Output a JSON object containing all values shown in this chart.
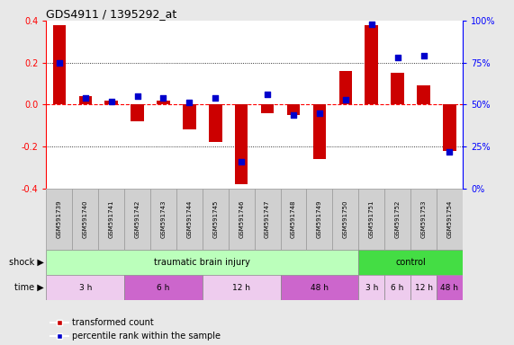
{
  "title": "GDS4911 / 1395292_at",
  "samples": [
    "GSM591739",
    "GSM591740",
    "GSM591741",
    "GSM591742",
    "GSM591743",
    "GSM591744",
    "GSM591745",
    "GSM591746",
    "GSM591747",
    "GSM591748",
    "GSM591749",
    "GSM591750",
    "GSM591751",
    "GSM591752",
    "GSM591753",
    "GSM591754"
  ],
  "red_values": [
    0.38,
    0.04,
    0.02,
    -0.08,
    0.02,
    -0.12,
    -0.18,
    -0.38,
    -0.04,
    -0.05,
    -0.26,
    0.16,
    0.38,
    0.15,
    0.09,
    -0.22
  ],
  "blue_percentile": [
    75,
    54,
    52,
    55,
    54,
    51,
    54,
    16,
    56,
    44,
    45,
    53,
    98,
    78,
    79,
    22
  ],
  "shock_groups": [
    {
      "label": "traumatic brain injury",
      "start": 0,
      "end": 11,
      "color": "#bbffbb"
    },
    {
      "label": "control",
      "start": 12,
      "end": 15,
      "color": "#44dd44"
    }
  ],
  "time_groups": [
    {
      "label": "3 h",
      "start": 0,
      "end": 2,
      "color": "#eeccee"
    },
    {
      "label": "6 h",
      "start": 3,
      "end": 5,
      "color": "#cc66cc"
    },
    {
      "label": "12 h",
      "start": 6,
      "end": 8,
      "color": "#eeccee"
    },
    {
      "label": "48 h",
      "start": 9,
      "end": 11,
      "color": "#cc66cc"
    },
    {
      "label": "3 h",
      "start": 12,
      "end": 12,
      "color": "#eeccee"
    },
    {
      "label": "6 h",
      "start": 13,
      "end": 13,
      "color": "#eeccee"
    },
    {
      "label": "12 h",
      "start": 14,
      "end": 14,
      "color": "#eeccee"
    },
    {
      "label": "48 h",
      "start": 15,
      "end": 15,
      "color": "#cc66cc"
    }
  ],
  "ylim": [
    -0.4,
    0.4
  ],
  "yticks_left": [
    -0.4,
    -0.2,
    0.0,
    0.2,
    0.4
  ],
  "right_yticks": [
    0,
    25,
    50,
    75,
    100
  ],
  "right_ylabels": [
    "0%",
    "25%",
    "50%",
    "75%",
    "100%"
  ],
  "bar_color": "#cc0000",
  "dot_color": "#0000cc",
  "legend_items": [
    "transformed count",
    "percentile rank within the sample"
  ],
  "bg_color": "#e8e8e8",
  "plot_bg": "#ffffff",
  "label_bg": "#d0d0d0"
}
